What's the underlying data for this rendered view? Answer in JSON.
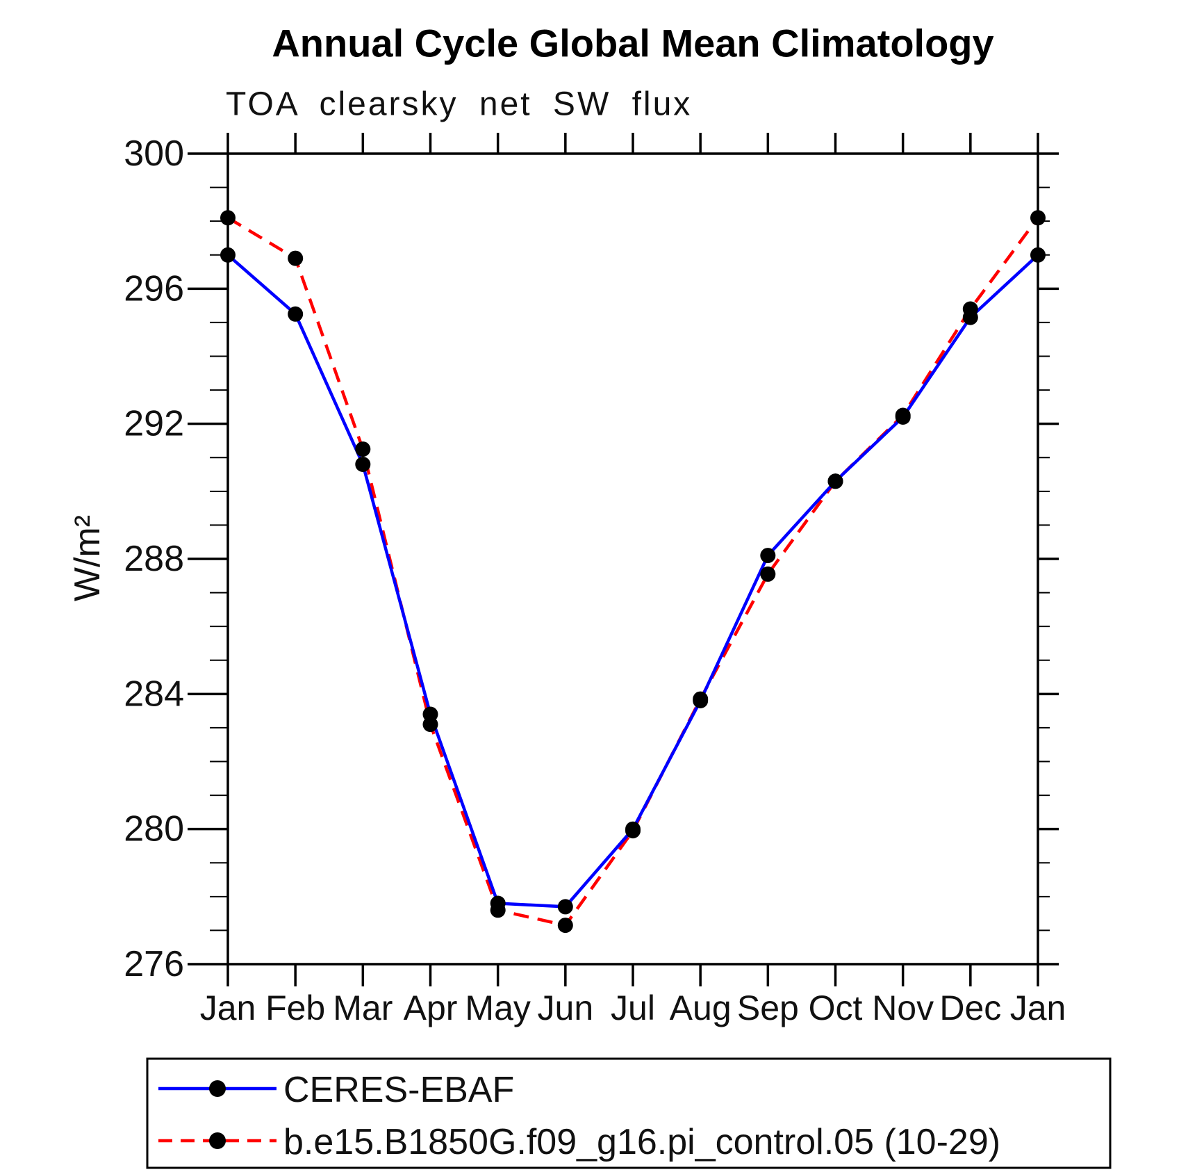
{
  "figure": {
    "title": "Annual Cycle Global Mean Climatology",
    "subtitle": "TOA clearsky net SW flux"
  },
  "chart_data": {
    "type": "line",
    "title": "Annual Cycle Global Mean Climatology",
    "subtitle": "TOA clearsky net SW flux",
    "ylabel": "W/m²",
    "xlabel": "",
    "x_categories": [
      "Jan",
      "Feb",
      "Mar",
      "Apr",
      "May",
      "Jun",
      "Jul",
      "Aug",
      "Sep",
      "Oct",
      "Nov",
      "Dec",
      "Jan"
    ],
    "ylim": [
      276,
      300
    ],
    "yticks_major": [
      276,
      280,
      284,
      288,
      292,
      296,
      300
    ],
    "ytick_minor_step": 1,
    "grid": false,
    "legend_position": "bottom-left-box",
    "units": "W/m²",
    "series": [
      {
        "name": "CERES-EBAF",
        "color": "#0000ff",
        "line_style": "solid",
        "marker": "filled-circle",
        "marker_color": "#000000",
        "values": [
          297.0,
          295.25,
          290.8,
          283.4,
          277.8,
          277.7,
          280.0,
          283.8,
          288.1,
          290.3,
          292.2,
          295.15,
          297.0
        ]
      },
      {
        "name": "b.e15.B1850G.f09_g16.pi_control.05 (10-29)",
        "color": "#ff0000",
        "line_style": "dashed",
        "marker": "filled-circle",
        "marker_color": "#000000",
        "values": [
          298.1,
          296.9,
          291.25,
          283.1,
          277.6,
          277.15,
          279.95,
          283.85,
          287.55,
          290.3,
          292.25,
          295.4,
          298.1
        ]
      }
    ]
  }
}
